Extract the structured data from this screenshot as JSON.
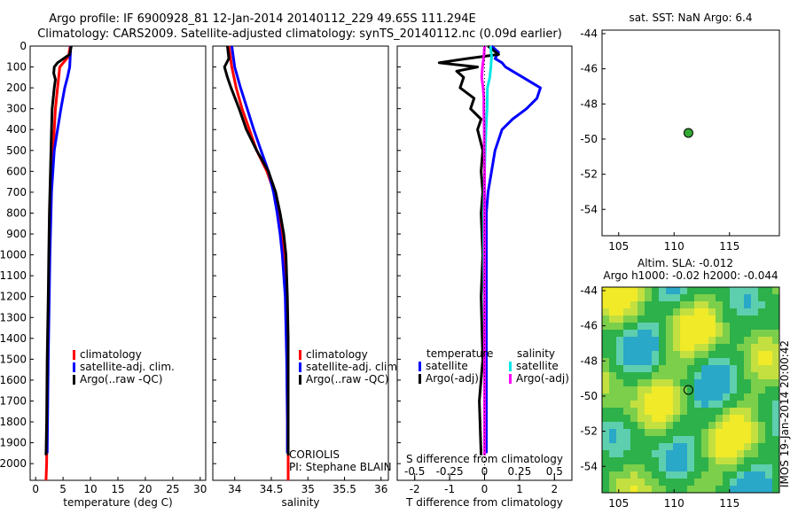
{
  "header": {
    "line1": "Argo profile: IF 6900928_81 12-Jan-2014 20140112_229 49.65S 111.294E",
    "line2": "Climatology: CARS2009. Satellite-adjusted climatology: synTS_20140112.nc (0.09d earlier)"
  },
  "colors": {
    "climatology": "#ff0000",
    "satellite": "#0000ff",
    "argo": "#000000",
    "sal_satellite": "#00e5e5",
    "sal_argo": "#ff00ff",
    "argo_marker": "#33aa33"
  },
  "side_text": {
    "stamp": "IMOS 19-Jan-2014 20:00:42"
  },
  "chart_data": [
    {
      "id": "temperature",
      "type": "line",
      "xlabel": "temperature (deg C)",
      "ylabel": "",
      "xlim": [
        -1,
        31
      ],
      "ylim": [
        2080,
        0
      ],
      "xticks": [
        0,
        5,
        10,
        15,
        20,
        25,
        30
      ],
      "xtick_labels": [
        "0",
        "5",
        "10",
        "15",
        "20",
        "25",
        "30"
      ],
      "yticks": [
        0,
        100,
        200,
        300,
        400,
        500,
        600,
        700,
        800,
        900,
        1000,
        1100,
        1200,
        1300,
        1400,
        1500,
        1600,
        1700,
        1800,
        1900,
        2000
      ],
      "ytick_labels": [
        "0",
        "100",
        "200",
        "300",
        "400",
        "500",
        "600",
        "700",
        "800",
        "900",
        "1000",
        "1100",
        "1200",
        "1300",
        "1400",
        "1500",
        "1600",
        "1700",
        "1800",
        "1900",
        "2000"
      ],
      "legend": [
        "climatology",
        "satellite-adj. clim.",
        "Argo(..raw -QC)"
      ],
      "series": [
        {
          "name": "climatology",
          "color_key": "climatology",
          "depth": [
            0,
            50,
            100,
            150,
            200,
            300,
            400,
            500,
            700,
            1000,
            1500,
            2000,
            2080
          ],
          "values": [
            6.3,
            6.0,
            4.4,
            4.2,
            4.0,
            3.6,
            3.4,
            3.2,
            2.8,
            2.5,
            2.2,
            2.0,
            1.9
          ]
        },
        {
          "name": "satellite-adj. clim.",
          "color_key": "satellite",
          "depth": [
            0,
            50,
            100,
            150,
            200,
            300,
            400,
            500,
            700,
            1000,
            1500,
            1950
          ],
          "values": [
            6.4,
            6.3,
            6.2,
            5.8,
            5.3,
            4.6,
            4.0,
            3.4,
            2.9,
            2.6,
            2.3,
            2.1
          ]
        },
        {
          "name": "Argo(..raw -QC)",
          "color_key": "argo",
          "depth": [
            0,
            40,
            80,
            100,
            130,
            160,
            200,
            250,
            300,
            400,
            500,
            600,
            700,
            800,
            1000,
            1200,
            1500,
            1800,
            1960
          ],
          "values": [
            6.5,
            6.2,
            4.0,
            3.4,
            3.3,
            3.6,
            3.4,
            3.2,
            3.0,
            2.9,
            2.8,
            2.7,
            2.6,
            2.5,
            2.4,
            2.3,
            2.1,
            2.0,
            1.9
          ]
        }
      ]
    },
    {
      "id": "salinity",
      "type": "line",
      "xlabel": "salinity",
      "xlim": [
        33.7,
        36.1
      ],
      "ylim": [
        2080,
        0
      ],
      "xticks": [
        34,
        34.5,
        35,
        35.5,
        36
      ],
      "xtick_labels": [
        "34",
        "34.5",
        "35",
        "35.5",
        "36"
      ],
      "legend": [
        "climatology",
        "satellite-adj. clim.",
        "Argo(..raw -QC)"
      ],
      "annotations": [
        "CORIOLIS",
        "PI: Stephane BLAIN"
      ],
      "series": [
        {
          "name": "climatology",
          "color_key": "climatology",
          "depth": [
            0,
            100,
            200,
            300,
            400,
            500,
            600,
            700,
            800,
            900,
            1000,
            1200,
            1500,
            1800,
            2080
          ],
          "values": [
            33.92,
            33.96,
            34.02,
            34.1,
            34.2,
            34.3,
            34.44,
            34.54,
            34.6,
            34.64,
            34.67,
            34.7,
            34.72,
            34.73,
            34.73
          ]
        },
        {
          "name": "satellite-adj. clim.",
          "color_key": "satellite",
          "depth": [
            0,
            100,
            200,
            300,
            400,
            500,
            600,
            700,
            800,
            900,
            1000,
            1200,
            1500,
            1800,
            1950
          ],
          "values": [
            33.96,
            34.0,
            34.08,
            34.17,
            34.26,
            34.36,
            34.46,
            34.53,
            34.58,
            34.62,
            34.65,
            34.69,
            34.71,
            34.72,
            34.72
          ]
        },
        {
          "name": "Argo(..raw -QC)",
          "color_key": "argo",
          "depth": [
            0,
            60,
            100,
            150,
            200,
            300,
            400,
            500,
            600,
            700,
            800,
            900,
            1000,
            1100,
            1200,
            1400,
            1600,
            1800,
            1960
          ],
          "values": [
            33.9,
            33.92,
            33.86,
            33.9,
            33.95,
            34.06,
            34.16,
            34.3,
            34.46,
            34.56,
            34.62,
            34.67,
            34.7,
            34.71,
            34.72,
            34.73,
            34.73,
            34.73,
            34.73
          ]
        }
      ]
    },
    {
      "id": "difference",
      "type": "line",
      "xlabel": "T difference from climatology",
      "top_axis_label": "S difference from climatology",
      "xlim": [
        -2.5,
        2.5
      ],
      "ylim": [
        2080,
        0
      ],
      "xticks": [
        -2,
        -1,
        0,
        1,
        2
      ],
      "xtick_labels": [
        "-2",
        "-1",
        "0",
        "1",
        "2"
      ],
      "s_ticks": [
        -0.5,
        -0.25,
        0,
        0.25,
        0.5
      ],
      "s_tick_labels": [
        "-0.5",
        "-0.25",
        "0",
        "0.25",
        "0.5"
      ],
      "legend_headers": [
        "temperature",
        "salinity"
      ],
      "legend": [
        "satellite",
        "Argo(-adj)",
        "satellite",
        "Argo(-adj)"
      ],
      "series": [
        {
          "name": "T satellite",
          "color_key": "satellite",
          "depth": [
            0,
            30,
            60,
            80,
            100,
            120,
            150,
            180,
            200,
            250,
            300,
            350,
            400,
            500,
            600,
            700,
            800,
            1000,
            1200,
            1500,
            1800,
            1950
          ],
          "values": [
            0.2,
            0.4,
            0.3,
            0.5,
            0.6,
            0.8,
            1.1,
            1.4,
            1.6,
            1.5,
            1.2,
            0.8,
            0.5,
            0.3,
            0.2,
            0.1,
            0.05,
            0.05,
            0.05,
            0.05,
            0.05,
            0.05
          ]
        },
        {
          "name": "T Argo(-adj)",
          "color_key": "argo",
          "depth": [
            0,
            40,
            60,
            80,
            100,
            120,
            150,
            200,
            250,
            300,
            350,
            400,
            500,
            600,
            700,
            800,
            1000,
            1200,
            1500,
            1700,
            1960
          ],
          "values": [
            0.1,
            0.4,
            -0.5,
            -1.3,
            -0.2,
            -0.8,
            -0.6,
            -0.7,
            -0.3,
            -0.4,
            -0.1,
            -0.2,
            -0.05,
            -0.1,
            -0.05,
            -0.1,
            -0.05,
            -0.1,
            -0.05,
            -0.15,
            -0.1
          ]
        },
        {
          "name": "S satellite",
          "color_key": "sal_satellite",
          "depth": [
            0,
            50,
            100,
            150,
            200,
            300,
            400,
            500,
            600,
            800,
            1000,
            1200,
            1500,
            1800,
            1950
          ],
          "values": [
            0.17,
            0.2,
            0.18,
            0.15,
            0.08,
            0.07,
            0.04,
            0.02,
            0.0,
            -0.02,
            -0.02,
            -0.01,
            0.0,
            0.0,
            0.0
          ]
        },
        {
          "name": "S Argo(-adj)",
          "color_key": "sal_argo",
          "depth": [
            0,
            50,
            100,
            150,
            200,
            250,
            300,
            400,
            500,
            600,
            800,
            1000,
            1500,
            1960
          ],
          "values": [
            0.0,
            -0.02,
            -0.06,
            -0.08,
            -0.04,
            -0.02,
            -0.02,
            -0.01,
            -0.01,
            0.0,
            0.0,
            0.0,
            0.0,
            0.0
          ]
        }
      ]
    },
    {
      "id": "sst_map",
      "type": "scatter",
      "title": "sat. SST: NaN Argo: 6.4",
      "xlim": [
        103.5,
        119.5
      ],
      "ylim": [
        -55.5,
        -43.8
      ],
      "xticks": [
        105,
        110,
        115
      ],
      "xtick_labels": [
        "105",
        "110",
        "115"
      ],
      "yticks": [
        -44,
        -46,
        -48,
        -50,
        -52,
        -54
      ],
      "ytick_labels": [
        "-44",
        "-46",
        "-48",
        "-50",
        "-52",
        "-54"
      ],
      "points": [
        {
          "lon": 111.294,
          "lat": -49.65
        }
      ]
    },
    {
      "id": "sla_map",
      "type": "heatmap",
      "title_line1": "Altim. SLA: -0.012",
      "title_line2": "Argo h1000: -0.02 h2000: -0.044",
      "xlim": [
        103.5,
        119.5
      ],
      "ylim": [
        -55.5,
        -43.8
      ],
      "xticks": [
        105,
        110,
        115
      ],
      "xtick_labels": [
        "105",
        "110",
        "115"
      ],
      "yticks": [
        -44,
        -46,
        -48,
        -50,
        -52,
        -54
      ],
      "ytick_labels": [
        "-44",
        "-46",
        "-48",
        "-50",
        "-52",
        "-54"
      ],
      "points": [
        {
          "lon": 111.294,
          "lat": -49.65
        }
      ],
      "palette": [
        "#2db14a",
        "#7ccf4a",
        "#c4e040",
        "#f0ea28",
        "#5ecfae",
        "#2aa8c8"
      ]
    }
  ]
}
